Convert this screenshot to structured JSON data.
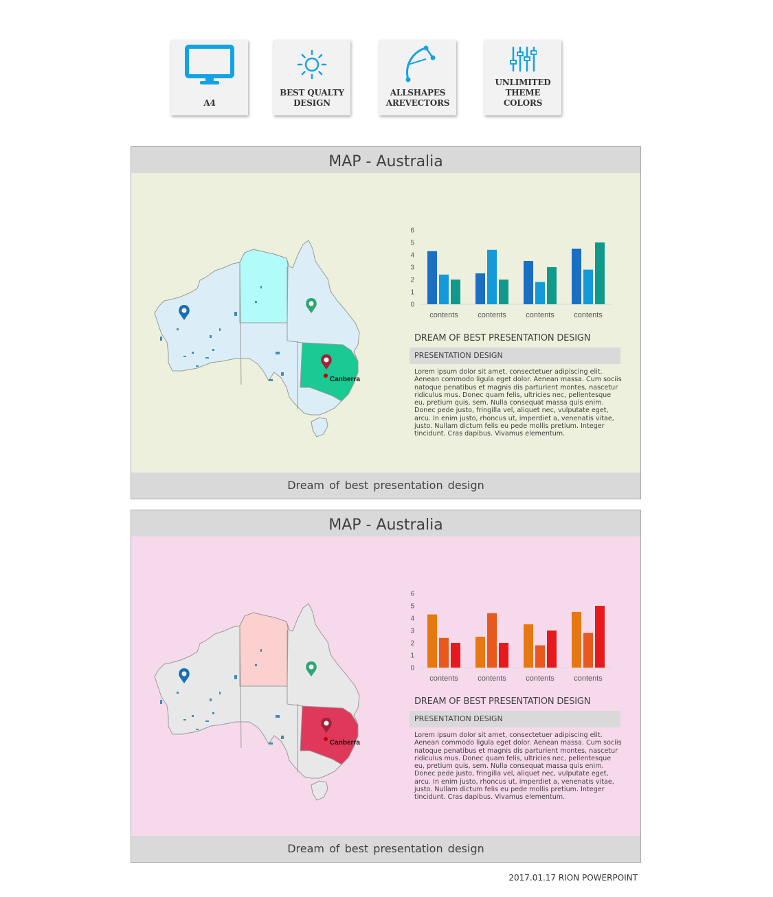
{
  "features": [
    {
      "label": "A4",
      "icon": "monitor-icon"
    },
    {
      "label": "BEST QUALTY DESIGN",
      "icon": "sun-icon"
    },
    {
      "label": "ALLSHAPES AREVECTORS",
      "icon": "vector-pen-icon"
    },
    {
      "label": "UNLIMITED THEME COLORS",
      "icon": "sliders-icon"
    }
  ],
  "slides": [
    {
      "title": "MAP - Australia",
      "footer": "Dream of best presentation design",
      "theme": {
        "background": "#edf0dc",
        "mainland": "#dbeef7",
        "nt": "#b2fbfb",
        "nsw": "#1ac993",
        "lakes": "#3b8eb8"
      },
      "map": {
        "city_label": "Canberra"
      },
      "text": {
        "heading": "DREAM OF BEST PRESENTATION DESIGN",
        "subheading": "PRESENTATION DESIGN",
        "paragraph": "Lorem ipsum dolor sit amet, consectetuer adipiscing elit. Aenean commodo ligula eget dolor. Aenean massa. Cum sociis natoque penatibus et magnis dis parturient montes, nascetur ridiculus mus. Donec quam felis, ultricies nec, pellentesque eu, pretium quis, sem. Nulla consequat massa quis enim. Donec pede justo, fringilla vel, aliquet nec, vulputate eget, arcu. In enim justo, rhoncus ut, imperdiet a, venenatis vitae, justo. Nullam dictum felis eu pede mollis pretium. Integer tincidunt. Cras dapibus. Vivamus elementum."
      }
    },
    {
      "title": "MAP - Australia",
      "footer": "Dream of best presentation design",
      "theme": {
        "background": "#f7d9ec",
        "mainland": "#e8e8e8",
        "nt": "#fdd0d0",
        "nsw": "#e0385a",
        "lakes": "#3b8eb8"
      },
      "map": {
        "city_label": "Canberra"
      },
      "text": {
        "heading": "DREAM OF BEST PRESENTATION DESIGN",
        "subheading": "PRESENTATION DESIGN",
        "paragraph": "Lorem ipsum dolor sit amet, consectetuer adipiscing elit. Aenean commodo ligula eget dolor. Aenean massa. Cum sociis natoque penatibus et magnis dis parturient montes, nascetur ridiculus mus. Donec quam felis, ultricies nec, pellentesque eu, pretium quis, sem. Nulla consequat massa quis enim. Donec pede justo, fringilla vel, aliquet nec, vulputate eget, arcu. In enim justo, rhoncus ut, imperdiet a, venenatis vitae, justo. Nullam dictum felis eu pede mollis pretium. Integer tincidunt. Cras dapibus. Vivamus elementum."
      }
    }
  ],
  "chart_data": [
    {
      "type": "bar",
      "categories": [
        "contents",
        "contents",
        "contents",
        "contents"
      ],
      "series": [
        {
          "values": [
            4.3,
            2.5,
            3.5,
            4.5
          ],
          "color": "#1a6fc4"
        },
        {
          "values": [
            2.4,
            4.4,
            1.8,
            2.8
          ],
          "color": "#149ad9"
        },
        {
          "values": [
            2.0,
            2.0,
            3.0,
            5.0
          ],
          "color": "#109a8c"
        }
      ],
      "ylim": [
        0,
        6
      ],
      "yticks": [
        0,
        1,
        2,
        3,
        4,
        5,
        6
      ],
      "grid": false
    },
    {
      "type": "bar",
      "categories": [
        "contents",
        "contents",
        "contents",
        "contents"
      ],
      "series": [
        {
          "values": [
            4.3,
            2.5,
            3.5,
            4.5
          ],
          "color": "#e7770f"
        },
        {
          "values": [
            2.4,
            4.4,
            1.8,
            2.8
          ],
          "color": "#e7591c"
        },
        {
          "values": [
            2.0,
            2.0,
            3.0,
            5.0
          ],
          "color": "#e8191c"
        }
      ],
      "ylim": [
        0,
        6
      ],
      "yticks": [
        0,
        1,
        2,
        3,
        4,
        5,
        6
      ],
      "grid": false
    }
  ],
  "footer_note": "2017.01.17 RION POWERPOINT"
}
